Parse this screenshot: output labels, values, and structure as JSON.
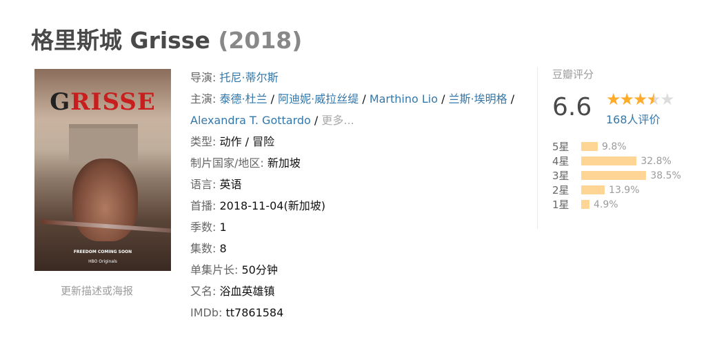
{
  "title": {
    "name": "格里斯城 Grisse",
    "year": "(2018)"
  },
  "poster": {
    "logo_dark": "G",
    "logo_red": "RISSE",
    "tagline": "FREEDOM COMING SOON",
    "network": "HBO Originals"
  },
  "update_link": "更新描述或海报",
  "info": {
    "director_label": "导演:",
    "director": "托尼·蒂尔斯",
    "cast_label": "主演:",
    "cast": [
      "泰德·杜兰",
      "阿迪妮·威拉丝缇",
      "Marthino Lio",
      "兰斯·埃明格",
      "Alexandra T. Gottardo"
    ],
    "more": "更多...",
    "genre_label": "类型:",
    "genre": "动作 / 冒险",
    "country_label": "制片国家/地区:",
    "country": "新加坡",
    "language_label": "语言:",
    "language": "英语",
    "premiere_label": "首播:",
    "premiere": "2018-11-04(新加坡)",
    "seasons_label": "季数:",
    "seasons": "1",
    "episodes_label": "集数:",
    "episodes": "8",
    "runtime_label": "单集片长:",
    "runtime": "50分钟",
    "aka_label": "又名:",
    "aka": "浴血英雄镇",
    "imdb_label": "IMDb:",
    "imdb": "tt7861584"
  },
  "rating": {
    "label": "豆瓣评分",
    "score": "6.6",
    "stars_out_of_5": 3.5,
    "count": "168人评价",
    "bar_color": "#ffd596",
    "star_color": "#ffac2d",
    "breakdown": [
      {
        "star": "5星",
        "pct": "9.8%",
        "value": 9.8
      },
      {
        "star": "4星",
        "pct": "32.8%",
        "value": 32.8
      },
      {
        "star": "3星",
        "pct": "38.5%",
        "value": 38.5
      },
      {
        "star": "2星",
        "pct": "13.9%",
        "value": 13.9
      },
      {
        "star": "1星",
        "pct": "4.9%",
        "value": 4.9
      }
    ]
  }
}
